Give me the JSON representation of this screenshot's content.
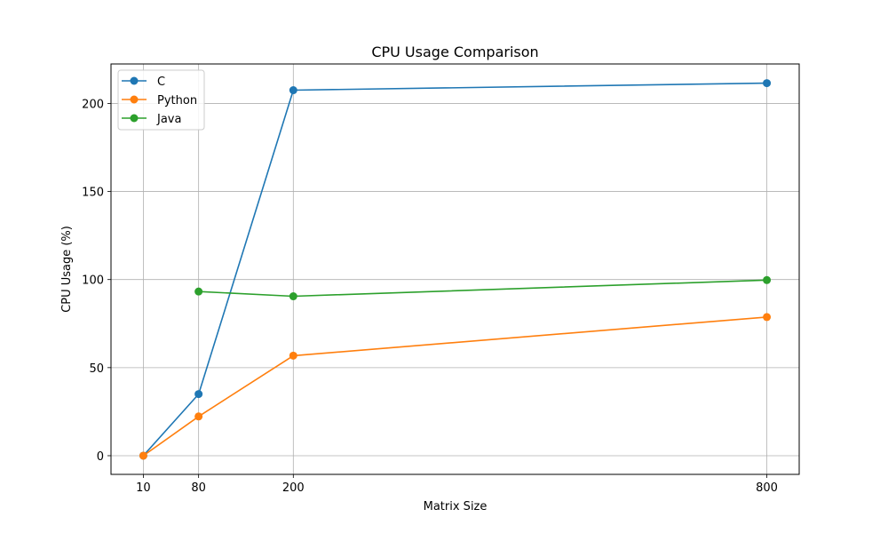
{
  "chart_data": {
    "type": "line",
    "title": "CPU Usage Comparison",
    "xlabel": "Matrix Size",
    "ylabel": "CPU Usage (%)",
    "x": [
      10,
      80,
      200,
      800
    ],
    "xticks": [
      "10",
      "80",
      "200",
      "800"
    ],
    "yticks": [
      0,
      50,
      100,
      150,
      200
    ],
    "xlim": [
      -31,
      841
    ],
    "ylim": [
      -10.6,
      222.4
    ],
    "grid": true,
    "legend_position": "top-left",
    "series": [
      {
        "name": "C",
        "color": "#1f77b4",
        "values": [
          0,
          35,
          207.5,
          211.5
        ]
      },
      {
        "name": "Python",
        "color": "#ff7f0e",
        "values": [
          0,
          22.3,
          56.8,
          78.7
        ]
      },
      {
        "name": "Java",
        "color": "#2ca02c",
        "values": [
          null,
          93.2,
          90.5,
          99.7
        ]
      }
    ]
  }
}
